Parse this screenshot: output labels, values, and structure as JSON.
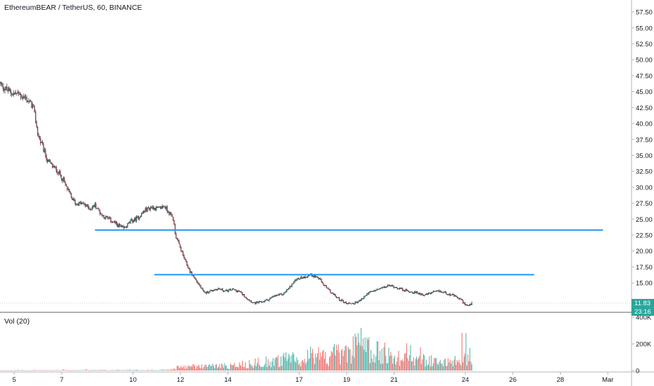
{
  "header": {
    "title": "EthereumBEAR / TetherUS, 60, BINANCE"
  },
  "volume_panel": {
    "title": "Vol (20)"
  },
  "price_badges": {
    "last_price": "11.83",
    "countdown": "23:16",
    "last_color": "#26a69a"
  },
  "colors": {
    "up": "#26a69a",
    "down": "#ef5350",
    "wick": "#131722",
    "trendline": "#2196f3",
    "grid": "#f0f3fa",
    "axis_line": "#b2b5be"
  },
  "chart_data": {
    "type": "candlestick",
    "symbol": "EthereumBEAR / TetherUS",
    "interval_minutes": 60,
    "exchange": "BINANCE",
    "x_axis": {
      "ticks": [
        "5",
        "7",
        "10",
        "12",
        "14",
        "17",
        "19",
        "21",
        "24",
        "26",
        "28",
        "Mar"
      ],
      "tick_days": [
        5,
        7,
        10,
        12,
        14,
        17,
        19,
        21,
        24,
        26,
        28,
        30
      ],
      "range_days": [
        4.4,
        31.0
      ]
    },
    "y_axis": {
      "ticks": [
        "57.50",
        "55.00",
        "52.50",
        "50.00",
        "47.50",
        "45.00",
        "42.50",
        "40.00",
        "37.50",
        "35.00",
        "32.50",
        "30.00",
        "27.50",
        "25.00",
        "22.50",
        "20.00",
        "17.50",
        "15.00"
      ],
      "tick_values": [
        57.5,
        55,
        52.5,
        50,
        47.5,
        45,
        42.5,
        40,
        37.5,
        35,
        32.5,
        30,
        27.5,
        25,
        22.5,
        20,
        17.5,
        15
      ],
      "range": [
        10.5,
        58.5
      ]
    },
    "volume_axis": {
      "ticks": [
        "400K",
        "200K",
        "0"
      ],
      "tick_values": [
        400000,
        200000,
        0
      ],
      "range": [
        0,
        400000
      ]
    },
    "price_path": [
      [
        4.4,
        46.3
      ],
      [
        4.6,
        45.5
      ],
      [
        4.9,
        44.8
      ],
      [
        5.2,
        44.6
      ],
      [
        5.5,
        43.9
      ],
      [
        5.8,
        42.6
      ],
      [
        6.0,
        38.2
      ],
      [
        6.2,
        36.2
      ],
      [
        6.4,
        34.2
      ],
      [
        6.6,
        33.3
      ],
      [
        6.8,
        32.7
      ],
      [
        7.0,
        31.6
      ],
      [
        7.2,
        30.0
      ],
      [
        7.4,
        28.4
      ],
      [
        7.6,
        27.4
      ],
      [
        7.8,
        27.5
      ],
      [
        8.0,
        27.2
      ],
      [
        8.2,
        26.6
      ],
      [
        8.4,
        27.2
      ],
      [
        8.7,
        25.6
      ],
      [
        9.0,
        25.0
      ],
      [
        9.3,
        24.2
      ],
      [
        9.6,
        23.5
      ],
      [
        9.9,
        24.6
      ],
      [
        10.2,
        25.2
      ],
      [
        10.5,
        26.4
      ],
      [
        10.8,
        26.9
      ],
      [
        11.1,
        26.6
      ],
      [
        11.3,
        27.1
      ],
      [
        11.5,
        26.2
      ],
      [
        11.7,
        25.0
      ],
      [
        11.8,
        22.3
      ],
      [
        12.0,
        20.4
      ],
      [
        12.2,
        18.4
      ],
      [
        12.4,
        16.8
      ],
      [
        12.6,
        15.7
      ],
      [
        12.8,
        14.6
      ],
      [
        13.0,
        13.4
      ],
      [
        13.3,
        13.8
      ],
      [
        13.6,
        14.1
      ],
      [
        13.9,
        13.7
      ],
      [
        14.2,
        14.0
      ],
      [
        14.5,
        13.6
      ],
      [
        14.8,
        12.6
      ],
      [
        15.1,
        11.8
      ],
      [
        15.4,
        12.0
      ],
      [
        15.7,
        12.4
      ],
      [
        16.0,
        13.0
      ],
      [
        16.3,
        13.2
      ],
      [
        16.6,
        14.3
      ],
      [
        16.9,
        15.7
      ],
      [
        17.2,
        15.9
      ],
      [
        17.5,
        16.3
      ],
      [
        17.8,
        15.8
      ],
      [
        18.1,
        14.4
      ],
      [
        18.4,
        13.3
      ],
      [
        18.7,
        12.4
      ],
      [
        19.0,
        11.8
      ],
      [
        19.3,
        11.8
      ],
      [
        19.6,
        12.3
      ],
      [
        19.9,
        13.4
      ],
      [
        20.2,
        13.8
      ],
      [
        20.5,
        14.2
      ],
      [
        20.8,
        14.6
      ],
      [
        21.1,
        14.3
      ],
      [
        21.4,
        13.9
      ],
      [
        21.7,
        13.6
      ],
      [
        22.0,
        13.4
      ],
      [
        22.3,
        13.1
      ],
      [
        22.6,
        13.5
      ],
      [
        22.9,
        13.7
      ],
      [
        23.2,
        13.4
      ],
      [
        23.5,
        13.0
      ],
      [
        23.8,
        12.4
      ],
      [
        24.0,
        11.6
      ],
      [
        24.15,
        11.4
      ],
      [
        24.3,
        11.9
      ]
    ],
    "volume_profile": [
      [
        4.4,
        2000
      ],
      [
        11.5,
        6000
      ],
      [
        12.0,
        35000
      ],
      [
        14.0,
        45000
      ],
      [
        16.0,
        90000
      ],
      [
        17.5,
        130000
      ],
      [
        18.5,
        140000
      ],
      [
        19.5,
        220000
      ],
      [
        20.5,
        150000
      ],
      [
        21.5,
        110000
      ],
      [
        22.5,
        90000
      ],
      [
        23.5,
        80000
      ],
      [
        24.3,
        120000
      ]
    ],
    "volume_spikes": [
      [
        19.6,
        320000
      ],
      [
        20.6,
        210000
      ],
      [
        17.5,
        180000
      ],
      [
        18.5,
        200000
      ],
      [
        24.1,
        120000
      ]
    ],
    "horizontal_lines": [
      {
        "from_day": 8.4,
        "to_day": 29.8,
        "value": 23.3
      },
      {
        "from_day": 10.9,
        "to_day": 26.9,
        "value": 16.3
      }
    ],
    "last_price": 11.83,
    "grid": false
  }
}
